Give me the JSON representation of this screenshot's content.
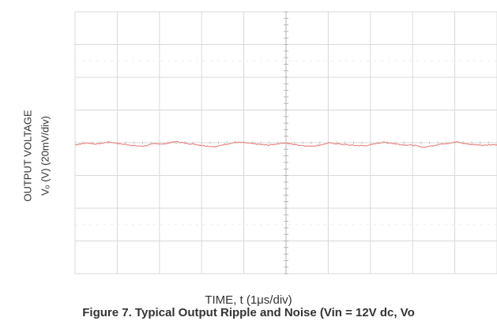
{
  "chart_data": {
    "type": "line",
    "title": "Figure 7. Typical Output Ripple and Noise (Vin = 12V dc, Vo",
    "xlabel": "TIME, t (1μs/div)",
    "ylabel_line1": "OUTPUT VOLTAGE",
    "ylabel_line2": "Vₒ (V) (20mV/div)",
    "x_divisions": 10,
    "y_divisions": 8,
    "grid": true,
    "series": [
      {
        "color": "#e8837f",
        "values": [
          0.02,
          0.08,
          0.12,
          0.06,
          0.1,
          0.18,
          0.12,
          0.05,
          0.02,
          -0.04,
          -0.06,
          0.0,
          0.1,
          0.05,
          0.12,
          0.2,
          0.14,
          0.08,
          0.04,
          -0.02,
          -0.05,
          -0.1,
          0.02,
          0.08,
          0.16,
          0.14,
          0.1,
          0.06,
          0.02,
          0.0,
          0.06,
          0.12,
          0.08,
          0.02,
          -0.02,
          -0.06,
          -0.03,
          0.04,
          0.12,
          0.08,
          0.04,
          0.0,
          -0.02,
          -0.04,
          0.0,
          0.1,
          0.16,
          0.12,
          0.06,
          0.02,
          0.0,
          -0.04,
          -0.12,
          -0.06,
          0.02,
          0.08,
          0.12,
          0.18,
          0.1,
          0.04,
          0.02,
          0.0,
          0.02,
          0.01
        ]
      }
    ]
  }
}
